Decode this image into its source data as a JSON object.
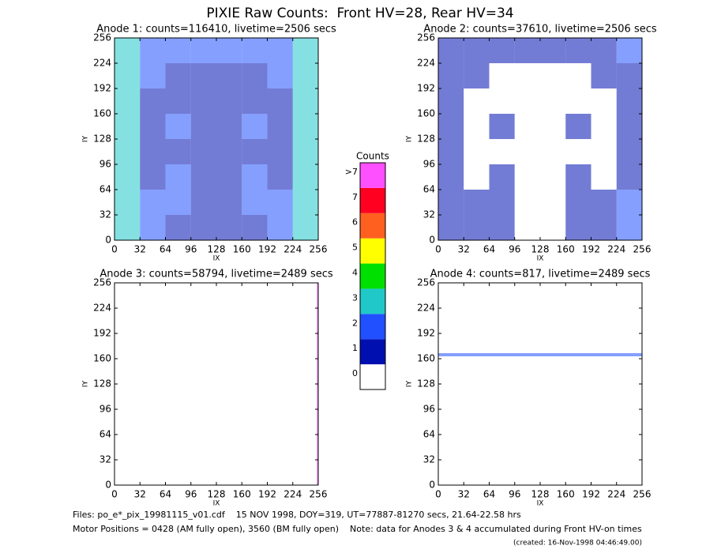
{
  "title": "PIXIE Raw Counts:  Front HV=28, Rear HV=34",
  "colorbar": {
    "title": "Counts",
    "levels": [
      "0",
      "1",
      "2",
      "3",
      "4",
      "5",
      "6",
      "7",
      ">7"
    ],
    "colors": [
      "#ffffff",
      "#0010b0",
      "#2050ff",
      "#20c8c8",
      "#00e000",
      "#ffff00",
      "#ff6020",
      "#ff0020",
      "#ff50ff"
    ]
  },
  "notes": [
    "Files: po_e*_pix_19981115_v01.cdf    15 NOV 1998, DOY=319, UT=77887-81270 secs, 21.64-22.58 hrs",
    "Motor Positions = 0428 (AM fully open), 3560 (BM fully open)    Note: data for Anodes 3 & 4 accumulated during Front HV-on times",
    "(created: 16-Nov-1998 04:46:49.00)"
  ],
  "chart_data": [
    {
      "type": "heatmap",
      "title": "Anode 1: counts=116410, livetime=2506 secs",
      "xlabel": "IX",
      "ylabel": "IY",
      "xlim": [
        0,
        256
      ],
      "ylim": [
        0,
        256
      ],
      "xticks": [
        0,
        32,
        64,
        96,
        128,
        160,
        192,
        224,
        256
      ],
      "yticks": [
        0,
        32,
        64,
        96,
        128,
        160,
        192,
        224,
        256
      ],
      "x_bins": [
        0,
        32,
        64,
        96,
        128,
        160,
        192,
        224,
        256
      ],
      "y_bins": [
        0,
        32,
        64,
        96,
        128,
        160,
        192,
        224,
        256
      ],
      "values": [
        [
          3,
          2,
          1,
          1,
          1,
          1,
          2,
          3
        ],
        [
          3,
          2,
          2,
          1,
          1,
          2,
          2,
          3
        ],
        [
          3,
          1,
          2,
          1,
          1,
          2,
          1,
          3
        ],
        [
          3,
          1,
          1,
          1,
          1,
          1,
          1,
          3
        ],
        [
          3,
          1,
          2,
          1,
          1,
          2,
          1,
          3
        ],
        [
          3,
          1,
          1,
          1,
          1,
          1,
          1,
          3
        ],
        [
          3,
          2,
          1,
          1,
          1,
          1,
          2,
          3
        ],
        [
          3,
          2,
          2,
          2,
          2,
          2,
          2,
          3
        ]
      ]
    },
    {
      "type": "heatmap",
      "title": "Anode 2: counts=37610, livetime=2506 secs",
      "xlabel": "IX",
      "ylabel": "IY",
      "xlim": [
        0,
        256
      ],
      "ylim": [
        0,
        256
      ],
      "xticks": [
        0,
        32,
        64,
        96,
        128,
        160,
        192,
        224,
        256
      ],
      "yticks": [
        0,
        32,
        64,
        96,
        128,
        160,
        192,
        224,
        256
      ],
      "x_bins": [
        0,
        32,
        64,
        96,
        128,
        160,
        192,
        224,
        256
      ],
      "y_bins": [
        0,
        32,
        64,
        96,
        128,
        160,
        192,
        224,
        256
      ],
      "values": [
        [
          1,
          1,
          1,
          0,
          0,
          1,
          1,
          2
        ],
        [
          1,
          1,
          1,
          0,
          0,
          1,
          1,
          2
        ],
        [
          1,
          0,
          1,
          0,
          0,
          1,
          0,
          1
        ],
        [
          1,
          0,
          0,
          0,
          0,
          0,
          0,
          1
        ],
        [
          1,
          0,
          1,
          0,
          0,
          1,
          0,
          1
        ],
        [
          1,
          0,
          0,
          0,
          0,
          0,
          0,
          1
        ],
        [
          1,
          1,
          0,
          0,
          0,
          0,
          1,
          1
        ],
        [
          1,
          1,
          1,
          1,
          1,
          1,
          1,
          2
        ]
      ]
    },
    {
      "type": "heatmap",
      "title": "Anode 3: counts=58794, livetime=2489 secs",
      "xlabel": "IX",
      "ylabel": "IY",
      "xlim": [
        0,
        256
      ],
      "ylim": [
        0,
        256
      ],
      "xticks": [
        0,
        32,
        64,
        96,
        128,
        160,
        192,
        224,
        256
      ],
      "yticks": [
        0,
        32,
        64,
        96,
        128,
        160,
        192,
        224,
        256
      ],
      "x_bins": [
        0,
        254,
        256
      ],
      "y_bins": [
        0,
        256
      ],
      "values": [
        [
          0,
          8
        ]
      ]
    },
    {
      "type": "heatmap",
      "title": "Anode 4: counts=817, livetime=2489 secs",
      "xlabel": "IX",
      "ylabel": "IY",
      "xlim": [
        0,
        256
      ],
      "ylim": [
        0,
        256
      ],
      "xticks": [
        0,
        32,
        64,
        96,
        128,
        160,
        192,
        224,
        256
      ],
      "yticks": [
        0,
        32,
        64,
        96,
        128,
        160,
        192,
        224,
        256
      ],
      "x_bins": [
        0,
        256
      ],
      "y_bins": [
        0,
        163,
        167,
        256
      ],
      "values": [
        [
          0
        ],
        [
          2
        ],
        [
          0
        ]
      ]
    }
  ]
}
